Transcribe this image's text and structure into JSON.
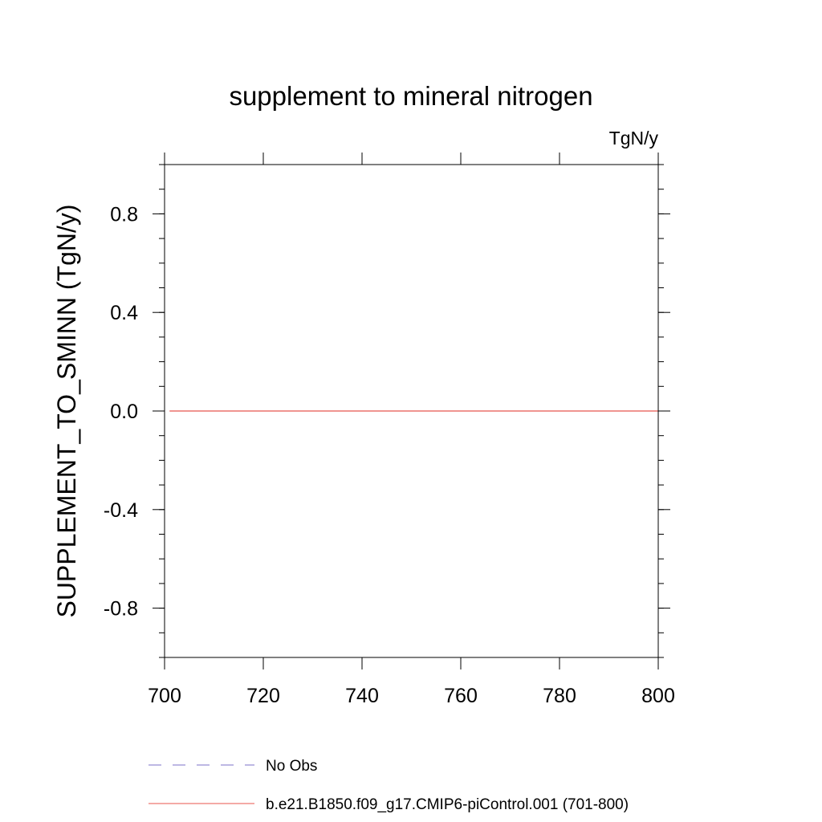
{
  "chart_data": {
    "type": "line",
    "title": "supplement to mineral nitrogen",
    "units_label": "TgN/y",
    "ylabel": "SUPPLEMENT_TO_SMINN  (TgN/y)",
    "xlabel": "",
    "xlim": [
      700,
      800
    ],
    "ylim": [
      -1.0,
      1.0
    ],
    "x_ticks": [
      700,
      720,
      740,
      760,
      780,
      800
    ],
    "x_minor_step": 20,
    "y_ticks": [
      -0.8,
      -0.4,
      0.0,
      0.4,
      0.8
    ],
    "y_tick_labels": [
      "-0.8",
      "-0.4",
      "0.0",
      "0.4",
      "0.8"
    ],
    "y_minor_step": 0.1,
    "grid": false,
    "legend_position": "bottom",
    "series": [
      {
        "name": "No Obs",
        "style": "dashed",
        "color": "#7b72c8",
        "x": [],
        "values": []
      },
      {
        "name": "b.e21.B1850.f09_g17.CMIP6-piControl.001 (701-800)",
        "style": "solid",
        "color": "#e8554e",
        "x": [
          701,
          800
        ],
        "values": [
          0.0,
          0.0
        ]
      }
    ]
  }
}
